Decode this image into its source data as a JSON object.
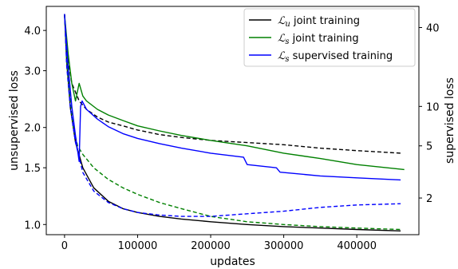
{
  "chart_data": {
    "type": "line",
    "xlabel": "updates",
    "ylabel_left": "unsupervised loss",
    "ylabel_right": "supervised loss",
    "xlim": [
      -25000,
      485000
    ],
    "ylim_left": [
      0.93,
      4.75
    ],
    "ylim_right": [
      1.05,
      58
    ],
    "yscale_left": "log",
    "yscale_right": "log",
    "legend_position": "top-right",
    "x_ticks": [
      {
        "value": 0,
        "label": "0"
      },
      {
        "value": 100000,
        "label": "100000"
      },
      {
        "value": 200000,
        "label": "200000"
      },
      {
        "value": 300000,
        "label": "300000"
      },
      {
        "value": 400000,
        "label": "400000"
      }
    ],
    "y_ticks_left": [
      {
        "value": 1.0,
        "label": "1.0"
      },
      {
        "value": 1.5,
        "label": "1.5"
      },
      {
        "value": 2.0,
        "label": "2.0"
      },
      {
        "value": 3.0,
        "label": "3.0"
      },
      {
        "value": 4.0,
        "label": "4.0"
      }
    ],
    "y_ticks_right": [
      {
        "value": 2,
        "label": "2"
      },
      {
        "value": 5,
        "label": "5"
      },
      {
        "value": 10,
        "label": "10"
      },
      {
        "value": 40,
        "label": "40"
      }
    ],
    "legend": [
      {
        "label": "joint training",
        "loss": "u",
        "color": "#000000"
      },
      {
        "label": "joint training",
        "loss": "s",
        "color": "#008000"
      },
      {
        "label": "supervised training",
        "loss": "s",
        "color": "#0000ff"
      }
    ],
    "series": [
      {
        "label_ref": 0,
        "axis": "left",
        "style": "solid",
        "color": "#000000",
        "x": [
          0,
          3000,
          8000,
          15000,
          25000,
          40000,
          60000,
          80000,
          100000,
          130000,
          160000,
          200000,
          250000,
          300000,
          350000,
          400000,
          460000
        ],
        "y": [
          4.5,
          3.2,
          2.3,
          1.8,
          1.5,
          1.3,
          1.18,
          1.12,
          1.09,
          1.06,
          1.04,
          1.02,
          1.0,
          0.985,
          0.975,
          0.965,
          0.955
        ]
      },
      {
        "label_ref": 0,
        "axis": "right",
        "style": "dashed",
        "color": "#000000",
        "x": [
          0,
          5000,
          10000,
          20000,
          30000,
          45000,
          60000,
          80000,
          100000,
          130000,
          160000,
          200000,
          250000,
          300000,
          350000,
          400000,
          460000
        ],
        "y": [
          50,
          22,
          15,
          11,
          9.5,
          8.3,
          7.6,
          7.1,
          6.6,
          6.1,
          5.8,
          5.5,
          5.3,
          5.1,
          4.8,
          4.6,
          4.4
        ]
      },
      {
        "label_ref": 1,
        "axis": "left",
        "style": "dashed",
        "color": "#008000",
        "x": [
          0,
          3000,
          8000,
          12000,
          18000,
          25000,
          40000,
          60000,
          80000,
          100000,
          130000,
          160000,
          200000,
          250000,
          300000,
          350000,
          400000,
          460000
        ],
        "y": [
          4.45,
          3.2,
          2.4,
          2.0,
          1.75,
          1.65,
          1.5,
          1.38,
          1.3,
          1.24,
          1.17,
          1.12,
          1.06,
          1.02,
          1.0,
          0.985,
          0.975,
          0.965
        ]
      },
      {
        "label_ref": 1,
        "axis": "right",
        "style": "solid",
        "color": "#008000",
        "x": [
          0,
          5000,
          10000,
          15000,
          20000,
          25000,
          30000,
          45000,
          60000,
          80000,
          100000,
          130000,
          160000,
          200000,
          250000,
          300000,
          350000,
          400000,
          465000
        ],
        "y": [
          50,
          25,
          15,
          11,
          15,
          12,
          11,
          9.5,
          8.6,
          7.8,
          7.1,
          6.5,
          6.0,
          5.5,
          5.0,
          4.4,
          4.0,
          3.6,
          3.3
        ]
      },
      {
        "label_ref": 2,
        "axis": "left",
        "style": "dashed",
        "color": "#0000ff",
        "x": [
          0,
          3000,
          8000,
          15000,
          25000,
          40000,
          60000,
          80000,
          100000,
          130000,
          160000,
          200000,
          250000,
          300000,
          350000,
          400000,
          460000
        ],
        "y": [
          4.5,
          3.1,
          2.3,
          1.8,
          1.45,
          1.27,
          1.17,
          1.12,
          1.09,
          1.07,
          1.06,
          1.06,
          1.08,
          1.1,
          1.13,
          1.15,
          1.16
        ]
      },
      {
        "label_ref": 2,
        "axis": "right",
        "style": "solid",
        "color": "#0000ff",
        "x": [
          0,
          5000,
          10000,
          15000,
          20000,
          22000,
          24000,
          30000,
          45000,
          60000,
          80000,
          100000,
          130000,
          160000,
          200000,
          245000,
          250000,
          290000,
          295000,
          350000,
          400000,
          460000
        ],
        "y": [
          50,
          20,
          10,
          6,
          3.8,
          10,
          11,
          9.5,
          8,
          7,
          6.2,
          5.7,
          5.2,
          4.8,
          4.4,
          4.1,
          3.6,
          3.4,
          3.15,
          2.95,
          2.85,
          2.75
        ]
      }
    ]
  }
}
